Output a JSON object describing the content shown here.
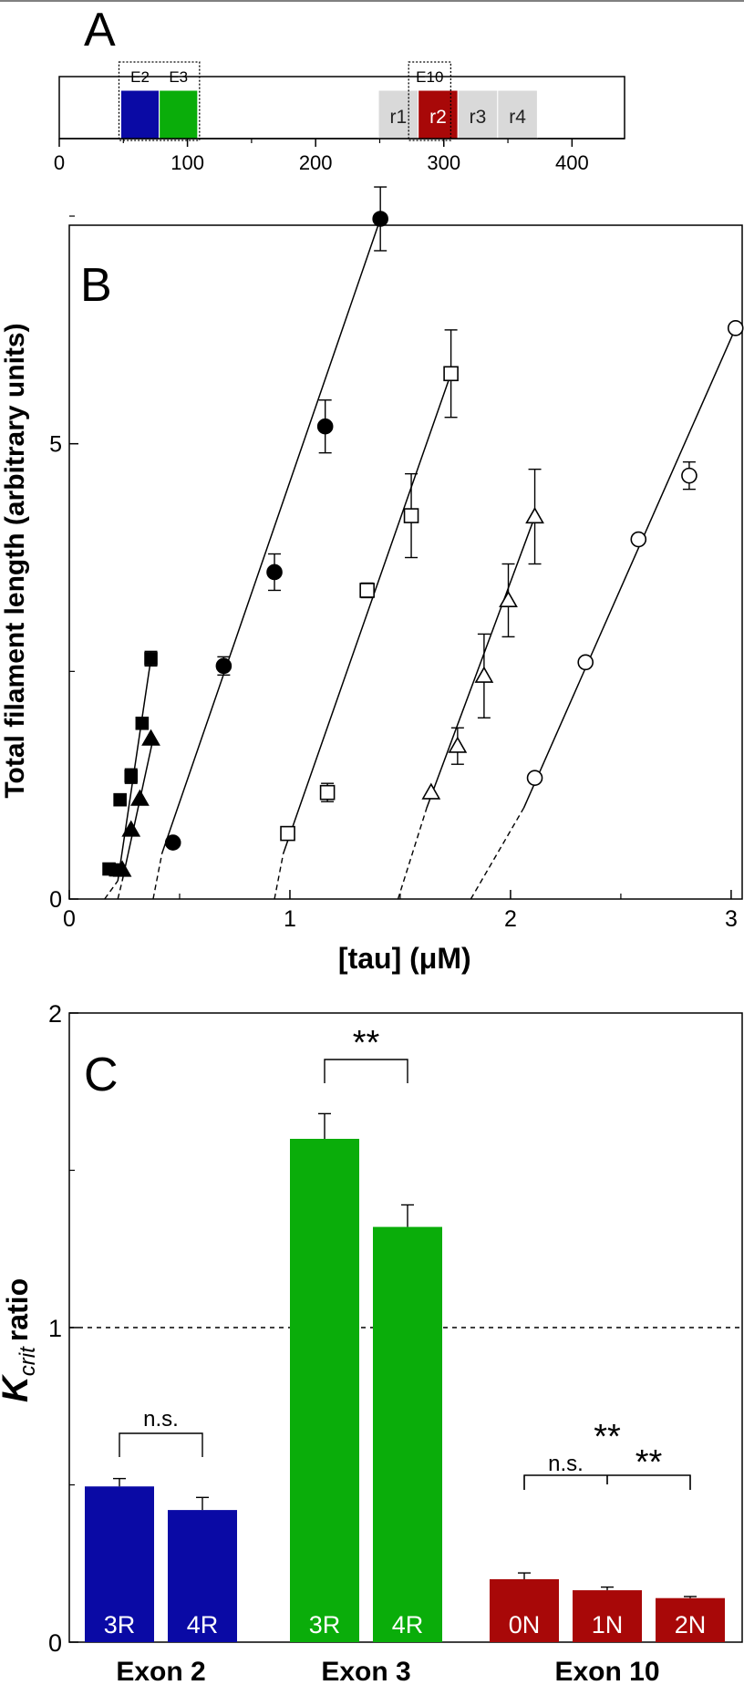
{
  "colors": {
    "blue": "#0a0aa5",
    "green": "#0aad0a",
    "red": "#a80808",
    "grey": "#d9d9d9",
    "ink": "#000000"
  },
  "chart_data": [
    {
      "type": "bar",
      "panel": "A",
      "xlim": [
        0,
        441
      ],
      "ticks": [
        "0",
        "100",
        "200",
        "300",
        "400"
      ],
      "regions": [
        {
          "label": "E2",
          "start": 48,
          "end": 78,
          "color": "blue"
        },
        {
          "label": "E3",
          "start": 78,
          "end": 108,
          "color": "green"
        },
        {
          "label": "r1",
          "start": 249,
          "end": 280,
          "color": "grey"
        },
        {
          "label": "r2",
          "start": 280,
          "end": 311,
          "color": "red"
        },
        {
          "label": "r3",
          "start": 311,
          "end": 342,
          "color": "grey"
        },
        {
          "label": "r4",
          "start": 342,
          "end": 373,
          "color": "grey"
        }
      ],
      "boxes": [
        {
          "label": "E2",
          "label2": "E3",
          "start": 48,
          "end": 108
        },
        {
          "label": "E10",
          "start": 274,
          "end": 304
        }
      ]
    },
    {
      "type": "scatter",
      "panel": "B",
      "xlabel": "[tau]   (μM)",
      "ylabel": "Total filament length  (arbitrary units)",
      "xlim": [
        0,
        3.05
      ],
      "ylim": [
        0,
        7.4
      ],
      "xticks": [
        "0",
        "1",
        "2",
        "3"
      ],
      "yticks": [
        "0",
        "5"
      ],
      "series": [
        {
          "marker": "square-filled",
          "points": [
            [
              0.18,
              0.33,
              0
            ],
            [
              0.21,
              0.32,
              0
            ],
            [
              0.23,
              1.09,
              0.05
            ],
            [
              0.28,
              1.35,
              0.08
            ],
            [
              0.33,
              1.93,
              0.05
            ],
            [
              0.37,
              2.64,
              0.08
            ]
          ],
          "fit": [
            [
              0.22,
              0.2
            ],
            [
              0.37,
              2.64
            ]
          ],
          "dash": [
            [
              0.16,
              0
            ],
            [
              0.22,
              0.2
            ]
          ]
        },
        {
          "marker": "triangle-filled",
          "points": [
            [
              0.24,
              0.32,
              0
            ],
            [
              0.28,
              0.76,
              0
            ],
            [
              0.32,
              1.1,
              0
            ],
            [
              0.37,
              1.76,
              0
            ]
          ],
          "fit": [
            [
              0.24,
              0.2
            ],
            [
              0.38,
              1.76
            ]
          ],
          "dash": [
            [
              0.22,
              0
            ],
            [
              0.24,
              0.2
            ]
          ]
        },
        {
          "marker": "circle-filled",
          "points": [
            [
              0.47,
              0.62,
              0
            ],
            [
              0.7,
              2.56,
              0.1
            ],
            [
              0.93,
              3.59,
              0.2
            ],
            [
              1.16,
              5.19,
              0.29
            ],
            [
              1.41,
              7.47,
              0.35
            ]
          ],
          "fit": [
            [
              0.42,
              0.5
            ],
            [
              1.41,
              7.47
            ]
          ],
          "dash": [
            [
              0.38,
              0
            ],
            [
              0.42,
              0.5
            ]
          ]
        },
        {
          "marker": "square-open",
          "points": [
            [
              0.99,
              0.72,
              0
            ],
            [
              1.17,
              1.17,
              0.1
            ],
            [
              1.35,
              3.39,
              0.08
            ],
            [
              1.55,
              4.21,
              0.46
            ],
            [
              1.73,
              5.77,
              0.48
            ]
          ],
          "fit": [
            [
              0.97,
              0.5
            ],
            [
              1.73,
              5.77
            ]
          ],
          "dash": [
            [
              0.93,
              0
            ],
            [
              0.97,
              0.5
            ]
          ]
        },
        {
          "marker": "triangle-open",
          "points": [
            [
              1.64,
              1.17,
              0
            ],
            [
              1.76,
              1.68,
              0.2
            ],
            [
              1.88,
              2.45,
              0.46
            ],
            [
              1.99,
              3.28,
              0.4
            ],
            [
              2.11,
              4.2,
              0.52
            ]
          ],
          "fit": [
            [
              1.62,
              1.0
            ],
            [
              2.11,
              4.2
            ]
          ],
          "dash": [
            [
              1.49,
              0
            ],
            [
              1.62,
              1.0
            ]
          ]
        },
        {
          "marker": "circle-open",
          "points": [
            [
              2.11,
              1.33,
              0
            ],
            [
              2.34,
              2.6,
              0
            ],
            [
              2.58,
              3.95,
              0
            ],
            [
              2.81,
              4.65,
              0.15
            ],
            [
              3.02,
              6.27,
              0
            ]
          ],
          "fit": [
            [
              2.06,
              1.0
            ],
            [
              3.02,
              6.27
            ]
          ],
          "dash": [
            [
              1.82,
              0
            ],
            [
              2.06,
              1.0
            ]
          ]
        }
      ]
    },
    {
      "type": "bar",
      "panel": "C",
      "ylabel_k": "K",
      "ylabel_sub": "crit",
      "ylabel_rest": "ratio",
      "ylim": [
        0,
        2
      ],
      "yticks": [
        "0",
        "1",
        "2"
      ],
      "reference_line": 1,
      "groups": [
        {
          "name": "Exon 2",
          "color": "blue",
          "bars": [
            {
              "label": "3R",
              "value": 0.495,
              "err": 0.025
            },
            {
              "label": "4R",
              "value": 0.42,
              "err": 0.04
            }
          ]
        },
        {
          "name": "Exon 3",
          "color": "green",
          "bars": [
            {
              "label": "3R",
              "value": 1.6,
              "err": 0.08
            },
            {
              "label": "4R",
              "value": 1.32,
              "err": 0.07
            }
          ]
        },
        {
          "name": "Exon 10",
          "color": "red",
          "bars": [
            {
              "label": "0N",
              "value": 0.2,
              "err": 0.02
            },
            {
              "label": "1N",
              "value": 0.165,
              "err": 0.01
            },
            {
              "label": "2N",
              "value": 0.14,
              "err": 0.005
            }
          ]
        }
      ],
      "significance": [
        {
          "text": "n.s.",
          "group": 0
        },
        {
          "text": "**",
          "group": 1
        },
        {
          "text": "n.s.",
          "group": 2,
          "pair": [
            0,
            1
          ]
        },
        {
          "text": "**",
          "group": 2,
          "pair": [
            1,
            2
          ]
        },
        {
          "text": "**",
          "group": 2,
          "pair": [
            0,
            2
          ]
        }
      ]
    }
  ],
  "panel_labels": {
    "a": "A",
    "b": "B",
    "c": "C"
  }
}
